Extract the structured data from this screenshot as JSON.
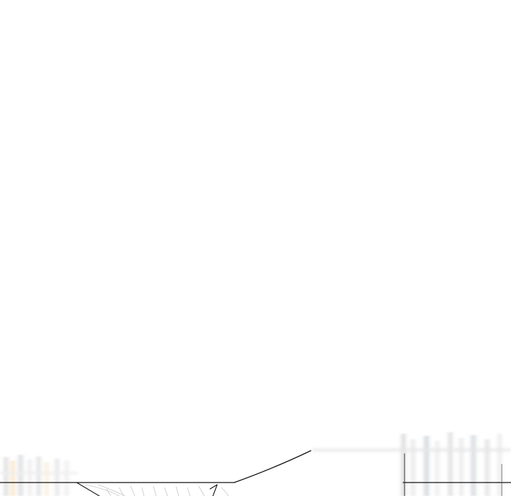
{
  "scene": {
    "background_color": "#ffffff",
    "line_color": "#111111",
    "faint_stroke_colors": [
      "#d8d8d8",
      "#c9c9c9",
      "#bdbdbd"
    ],
    "warm_blur_color": "#f2c27a",
    "cool_blur_color": "#cfd5da"
  }
}
